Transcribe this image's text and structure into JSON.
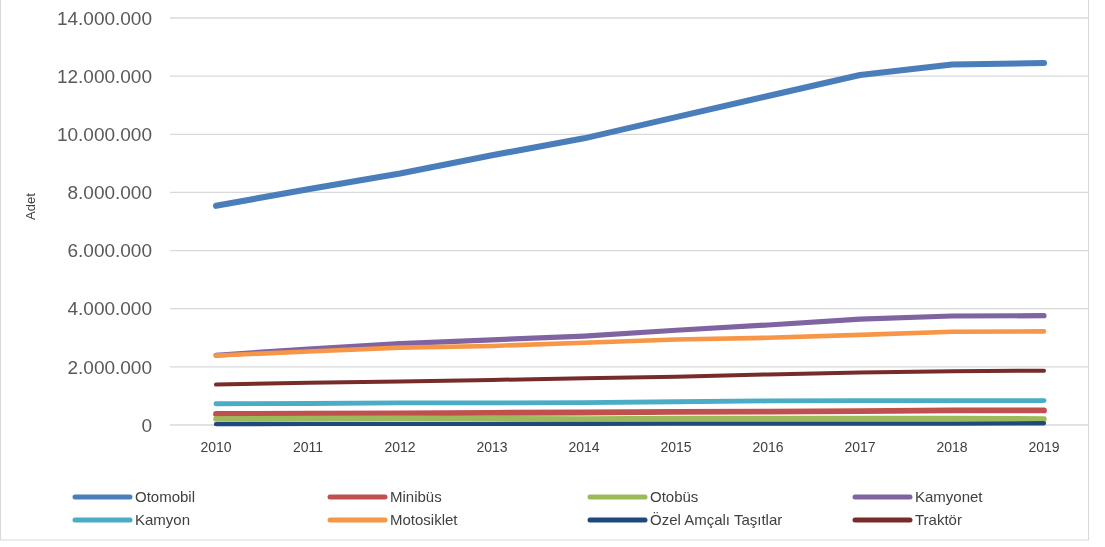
{
  "chart_data": {
    "type": "line",
    "ylabel": "Adet",
    "categories": [
      "2010",
      "2011",
      "2012",
      "2013",
      "2014",
      "2015",
      "2016",
      "2017",
      "2018",
      "2019"
    ],
    "ylim": [
      0,
      14000000
    ],
    "yticks": [
      {
        "value": 0,
        "label": "0"
      },
      {
        "value": 2000000,
        "label": "2.000.000"
      },
      {
        "value": 4000000,
        "label": "4.000.000"
      },
      {
        "value": 6000000,
        "label": "6.000.000"
      },
      {
        "value": 8000000,
        "label": "8.000.000"
      },
      {
        "value": 10000000,
        "label": "10.000.000"
      },
      {
        "value": 12000000,
        "label": "12.000.000"
      },
      {
        "value": 14000000,
        "label": "14.000.000"
      }
    ],
    "grid": "y",
    "legend": "bottom",
    "marker": "none",
    "line_style": "solid",
    "series": [
      {
        "name": "Otomobil",
        "color": "#4a7ebb",
        "values": [
          7540000,
          8110000,
          8650000,
          9280000,
          9860000,
          10590000,
          11320000,
          12040000,
          12400000,
          12450000
        ]
      },
      {
        "name": "Minibüs",
        "color": "#c0504d",
        "values": [
          380000,
          390000,
          400000,
          420000,
          430000,
          450000,
          460000,
          480000,
          500000,
          500000
        ]
      },
      {
        "name": "Otobüs",
        "color": "#9bbb59",
        "values": [
          210000,
          220000,
          230000,
          220000,
          210000,
          220000,
          220000,
          220000,
          220000,
          210000
        ]
      },
      {
        "name": "Kamyonet",
        "color": "#8064a2",
        "values": [
          2400000,
          2610000,
          2800000,
          2930000,
          3060000,
          3260000,
          3440000,
          3640000,
          3750000,
          3760000
        ]
      },
      {
        "name": "Kamyon",
        "color": "#4bacc6",
        "values": [
          730000,
          740000,
          760000,
          760000,
          770000,
          800000,
          830000,
          840000,
          840000,
          840000
        ]
      },
      {
        "name": "Motosiklet",
        "color": "#f79646",
        "values": [
          2390000,
          2530000,
          2660000,
          2720000,
          2830000,
          2940000,
          3000000,
          3100000,
          3210000,
          3220000
        ]
      },
      {
        "name": "Özel Amçalı Taşıtlar",
        "color": "#1f497d",
        "values": [
          30000,
          40000,
          40000,
          40000,
          40000,
          50000,
          50000,
          50000,
          50000,
          60000
        ]
      },
      {
        "name": "Traktör",
        "color": "#772c2a",
        "values": [
          1390000,
          1450000,
          1500000,
          1550000,
          1610000,
          1660000,
          1740000,
          1810000,
          1850000,
          1870000
        ]
      }
    ]
  }
}
